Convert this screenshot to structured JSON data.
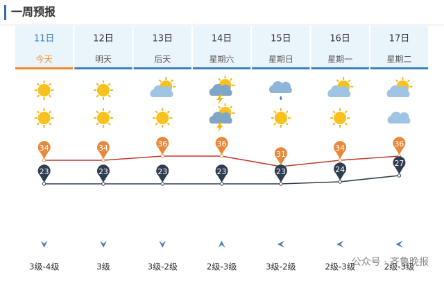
{
  "header": {
    "title": "一周预报"
  },
  "days": [
    {
      "date": "11日",
      "label": "今天",
      "high": 34,
      "low": 23,
      "wind": "3级-4级"
    },
    {
      "date": "12日",
      "label": "明天",
      "high": 34,
      "low": 23,
      "wind": "3级"
    },
    {
      "date": "13日",
      "label": "后天",
      "high": 36,
      "low": 23,
      "wind": "3级-2级"
    },
    {
      "date": "14日",
      "label": "星期六",
      "high": 36,
      "low": 23,
      "wind": "2级-3级"
    },
    {
      "date": "15日",
      "label": "星期日",
      "high": 31,
      "low": 23,
      "wind": "3级-2级"
    },
    {
      "date": "16日",
      "label": "星期一",
      "high": 34,
      "low": 24,
      "wind": "2级-3级"
    },
    {
      "date": "17日",
      "label": "星期二",
      "high": 36,
      "low": 27,
      "wind": "2级-3级"
    }
  ],
  "watermark": "公众号 · 齐鲁晚报"
}
